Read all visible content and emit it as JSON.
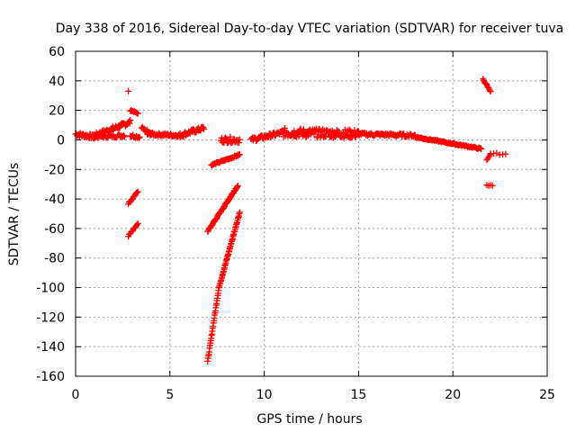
{
  "chart_data": {
    "type": "scatter",
    "title": "Day 338 of 2016, Sidereal Day-to-day VTEC variation (SDTVAR) for receiver tuva",
    "xlabel": "GPS time / hours",
    "ylabel": "SDTVAR / TECUs",
    "xlim": [
      0,
      25
    ],
    "ylim": [
      -160,
      60
    ],
    "xticks": [
      "0",
      "5",
      "10",
      "15",
      "20",
      "25"
    ],
    "yticks": [
      "-160",
      "-140",
      "-120",
      "-100",
      "-80",
      "-60",
      "-40",
      "-20",
      "0",
      "20",
      "40",
      "60"
    ],
    "grid": true,
    "marker": "plus",
    "color": "#ff0000",
    "segments": [
      {
        "x0": 0.0,
        "y0": 4,
        "x1": 1.0,
        "y1": 2,
        "n": 30,
        "spread": 3
      },
      {
        "x0": 1.0,
        "y0": 3,
        "x1": 2.9,
        "y1": 12,
        "n": 60,
        "spread": 3
      },
      {
        "x0": 1.0,
        "y0": 2,
        "x1": 2.6,
        "y1": 3,
        "n": 35,
        "spread": 2
      },
      {
        "x0": 2.9,
        "y0": 3,
        "x1": 3.4,
        "y1": 2,
        "n": 12,
        "spread": 2
      },
      {
        "x0": 2.8,
        "y0": 33,
        "x1": 2.8,
        "y1": 33,
        "n": 1,
        "spread": 0
      },
      {
        "x0": 2.9,
        "y0": 20,
        "x1": 3.3,
        "y1": 18,
        "n": 10,
        "spread": 1
      },
      {
        "x0": 2.8,
        "y0": -43,
        "x1": 3.3,
        "y1": -35,
        "n": 14,
        "spread": 1
      },
      {
        "x0": 2.8,
        "y0": -65,
        "x1": 3.3,
        "y1": -57,
        "n": 14,
        "spread": 1
      },
      {
        "x0": 3.5,
        "y0": 8,
        "x1": 4.0,
        "y1": 4,
        "n": 12,
        "spread": 2
      },
      {
        "x0": 3.8,
        "y0": 4,
        "x1": 5.5,
        "y1": 3,
        "n": 45,
        "spread": 2
      },
      {
        "x0": 5.5,
        "y0": 3,
        "x1": 6.8,
        "y1": 8,
        "n": 40,
        "spread": 3
      },
      {
        "x0": 7.0,
        "y0": -62,
        "x1": 8.6,
        "y1": -31,
        "n": 60,
        "spread": 1
      },
      {
        "x0": 7.0,
        "y0": -150,
        "x1": 7.6,
        "y1": -100,
        "n": 30,
        "spread": 1
      },
      {
        "x0": 7.6,
        "y0": -100,
        "x1": 8.7,
        "y1": -49,
        "n": 50,
        "spread": 1
      },
      {
        "x0": 7.2,
        "y0": -17,
        "x1": 8.7,
        "y1": -10,
        "n": 40,
        "spread": 1
      },
      {
        "x0": 7.7,
        "y0": 0,
        "x1": 8.7,
        "y1": 0,
        "n": 25,
        "spread": 4
      },
      {
        "x0": 9.3,
        "y0": 0,
        "x1": 11.0,
        "y1": 5,
        "n": 45,
        "spread": 3
      },
      {
        "x0": 11.0,
        "y0": 5,
        "x1": 15.0,
        "y1": 4,
        "n": 130,
        "spread": 6
      },
      {
        "x0": 15.0,
        "y0": 4,
        "x1": 18.0,
        "y1": 3,
        "n": 70,
        "spread": 2
      },
      {
        "x0": 18.0,
        "y0": 2,
        "x1": 21.5,
        "y1": -6,
        "n": 80,
        "spread": 1
      },
      {
        "x0": 21.6,
        "y0": 41,
        "x1": 22.0,
        "y1": 33,
        "n": 12,
        "spread": 1
      },
      {
        "x0": 21.8,
        "y0": -31,
        "x1": 22.1,
        "y1": -31,
        "n": 4,
        "spread": 1
      },
      {
        "x0": 21.8,
        "y0": -14,
        "x1": 22.0,
        "y1": -10,
        "n": 5,
        "spread": 1
      },
      {
        "x0": 22.0,
        "y0": -9,
        "x1": 22.8,
        "y1": -10,
        "n": 6,
        "spread": 1
      }
    ]
  }
}
